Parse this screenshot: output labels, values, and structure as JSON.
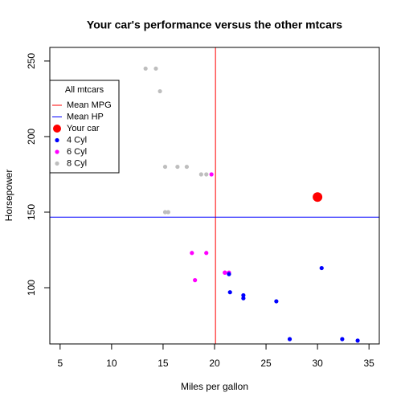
{
  "chart_data": {
    "type": "scatter",
    "title": "Your car's performance versus the other mtcars",
    "x_label": "Miles per gallon",
    "y_label": "Horsepower",
    "xlim": [
      4,
      36
    ],
    "ylim": [
      62.8,
      259
    ],
    "xticks": [
      5,
      10,
      15,
      20,
      25,
      30,
      35
    ],
    "yticks": [
      100,
      150,
      200,
      250
    ],
    "legend": {
      "title": "All mtcars",
      "position": "top-left"
    },
    "reference_lines": [
      {
        "name": "Mean MPG",
        "axis": "x",
        "value": 20.09,
        "color": "#ff0000"
      },
      {
        "name": "Mean HP",
        "axis": "y",
        "value": 146.6875,
        "color": "#0000ff"
      }
    ],
    "series": [
      {
        "name": "Your car",
        "color": "#ff0000",
        "size": 6,
        "x": [
          30
        ],
        "values": [
          160
        ]
      },
      {
        "name": "4 Cyl",
        "color": "#0000ff",
        "size": 2.6,
        "x": [
          22.8,
          22.8,
          32.4,
          33.9,
          21.5,
          27.3,
          26.0,
          30.4,
          21.4
        ],
        "values": [
          93,
          95,
          66,
          65,
          97,
          66,
          91,
          113,
          109
        ]
      },
      {
        "name": "6 Cyl",
        "color": "#ff00ff",
        "size": 2.6,
        "x": [
          21.0,
          21.0,
          21.4,
          18.1,
          19.2,
          17.8,
          19.7
        ],
        "values": [
          110,
          110,
          110,
          105,
          123,
          123,
          175
        ]
      },
      {
        "name": "8 Cyl",
        "color": "#bebebe",
        "size": 2.6,
        "x": [
          18.7,
          14.3,
          16.4,
          17.3,
          15.2,
          10.4,
          10.4,
          14.7,
          15.5,
          15.2,
          13.3,
          19.2
        ],
        "values": [
          175,
          245,
          180,
          180,
          180,
          205,
          215,
          230,
          150,
          150,
          245,
          175
        ]
      }
    ]
  }
}
